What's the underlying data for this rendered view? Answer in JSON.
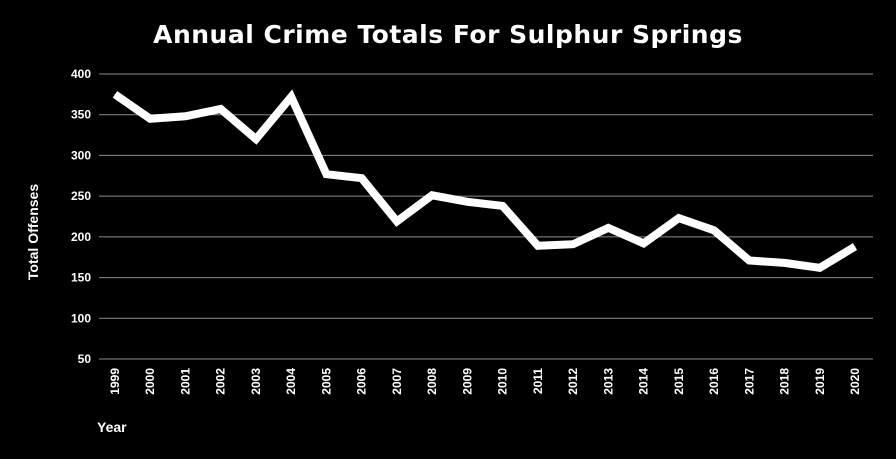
{
  "chart_data": {
    "type": "line",
    "title": "Annual Crime Totals For Sulphur Springs",
    "xlabel": "Year",
    "ylabel": "Total Offenses",
    "ylim": [
      50,
      400
    ],
    "yticks": [
      50,
      100,
      150,
      200,
      250,
      300,
      350,
      400
    ],
    "categories": [
      "1999",
      "2000",
      "2001",
      "2002",
      "2003",
      "2004",
      "2005",
      "2006",
      "2007",
      "2008",
      "2009",
      "2010",
      "2011",
      "2012",
      "2013",
      "2014",
      "2015",
      "2016",
      "2017",
      "2018",
      "2019",
      "2020"
    ],
    "series": [
      {
        "values": [
          375,
          345,
          348,
          357,
          320,
          372,
          277,
          272,
          219,
          251,
          243,
          238,
          189,
          191,
          211,
          192,
          223,
          208,
          171,
          168,
          162,
          188
        ]
      }
    ],
    "grid": true,
    "background": "#000000",
    "line_color": "#ffffff",
    "grid_color": "#8c8c8c"
  }
}
